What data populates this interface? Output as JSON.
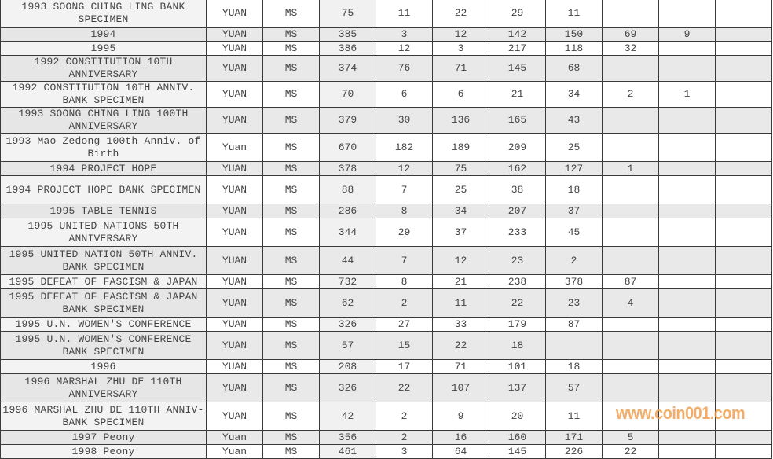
{
  "table": {
    "rows": [
      {
        "name": "1993 SOONG CHING LING BANK SPECIMEN",
        "unit": "YUAN",
        "grade": "MS",
        "total": "75",
        "c": [
          "11",
          "22",
          "29",
          "11",
          "",
          "",
          ""
        ]
      },
      {
        "name": "1994",
        "unit": "YUAN",
        "grade": "MS",
        "total": "385",
        "c": [
          "3",
          "12",
          "142",
          "150",
          "69",
          "9",
          ""
        ]
      },
      {
        "name": "1995",
        "unit": "YUAN",
        "grade": "MS",
        "total": "386",
        "c": [
          "12",
          "3",
          "217",
          "118",
          "32",
          "",
          ""
        ]
      },
      {
        "name": "1992 CONSTITUTION 10TH ANNIVERSARY",
        "unit": "YUAN",
        "grade": "MS",
        "total": "374",
        "c": [
          "76",
          "71",
          "145",
          "68",
          "",
          "",
          ""
        ]
      },
      {
        "name": "1992 CONSTITUTION 10TH ANNIV. BANK SPECIMEN",
        "unit": "YUAN",
        "grade": "MS",
        "total": "70",
        "c": [
          "6",
          "6",
          "21",
          "34",
          "2",
          "1",
          ""
        ]
      },
      {
        "name": "1993 SOONG CHING LING 100TH ANNIVERSARY",
        "unit": "YUAN",
        "grade": "MS",
        "total": "379",
        "c": [
          "30",
          "136",
          "165",
          "43",
          "",
          "",
          ""
        ]
      },
      {
        "name": "1993 Mao Zedong 100th Anniv. of Birth",
        "unit": "Yuan",
        "grade": "MS",
        "total": "670",
        "c": [
          "182",
          "189",
          "209",
          "25",
          "",
          "",
          ""
        ]
      },
      {
        "name": "1994 PROJECT HOPE",
        "unit": "YUAN",
        "grade": "MS",
        "total": "378",
        "c": [
          "12",
          "75",
          "162",
          "127",
          "1",
          "",
          ""
        ]
      },
      {
        "name": "1994 PROJECT HOPE BANK SPECIMEN",
        "unit": "YUAN",
        "grade": "MS",
        "total": "88",
        "c": [
          "7",
          "25",
          "38",
          "18",
          "",
          "",
          ""
        ]
      },
      {
        "name": "1995 TABLE TENNIS",
        "unit": "YUAN",
        "grade": "MS",
        "total": "286",
        "c": [
          "8",
          "34",
          "207",
          "37",
          "",
          "",
          ""
        ]
      },
      {
        "name": "1995 UNITED NATIONS 50TH ANNIVERSARY",
        "unit": "YUAN",
        "grade": "MS",
        "total": "344",
        "c": [
          "29",
          "37",
          "233",
          "45",
          "",
          "",
          ""
        ]
      },
      {
        "name": "1995 UNITED NATION 50TH ANNIV. BANK SPECIMEN",
        "unit": "YUAN",
        "grade": "MS",
        "total": "44",
        "c": [
          "7",
          "12",
          "23",
          "2",
          "",
          "",
          ""
        ]
      },
      {
        "name": "1995 DEFEAT OF FASCISM & JAPAN",
        "unit": "YUAN",
        "grade": "MS",
        "total": "732",
        "c": [
          "8",
          "21",
          "238",
          "378",
          "87",
          "",
          ""
        ]
      },
      {
        "name": "1995 DEFEAT OF FASCISM & JAPAN BANK SPECIMEN",
        "unit": "YUAN",
        "grade": "MS",
        "total": "62",
        "c": [
          "2",
          "11",
          "22",
          "23",
          "4",
          "",
          ""
        ]
      },
      {
        "name": "1995 U.N. WOMEN'S CONFERENCE",
        "unit": "YUAN",
        "grade": "MS",
        "total": "326",
        "c": [
          "27",
          "33",
          "179",
          "87",
          "",
          "",
          ""
        ]
      },
      {
        "name": "1995 U.N. WOMEN'S CONFERENCE BANK SPECIMEN",
        "unit": "YUAN",
        "grade": "MS",
        "total": "57",
        "c": [
          "15",
          "22",
          "18",
          "",
          "",
          "",
          ""
        ]
      },
      {
        "name": "1996",
        "unit": "YUAN",
        "grade": "MS",
        "total": "208",
        "c": [
          "17",
          "71",
          "101",
          "18",
          "",
          "",
          ""
        ]
      },
      {
        "name": "1996 MARSHAL ZHU DE 110TH ANNIVERSARY",
        "unit": "YUAN",
        "grade": "MS",
        "total": "326",
        "c": [
          "22",
          "107",
          "137",
          "57",
          "",
          "",
          ""
        ]
      },
      {
        "name": "1996 MARSHAL ZHU DE 110TH ANNIV-BANK SPECIMEN",
        "unit": "YUAN",
        "grade": "MS",
        "total": "42",
        "c": [
          "2",
          "9",
          "20",
          "11",
          "",
          "",
          ""
        ]
      },
      {
        "name": "1997 Peony",
        "unit": "Yuan",
        "grade": "MS",
        "total": "356",
        "c": [
          "2",
          "16",
          "160",
          "171",
          "5",
          "",
          ""
        ]
      },
      {
        "name": "1998 Peony",
        "unit": "Yuan",
        "grade": "MS",
        "total": "461",
        "c": [
          "3",
          "64",
          "145",
          "226",
          "22",
          "",
          ""
        ]
      }
    ]
  },
  "watermark": {
    "text": "www.coin001.com",
    "color": "#f0a050"
  }
}
